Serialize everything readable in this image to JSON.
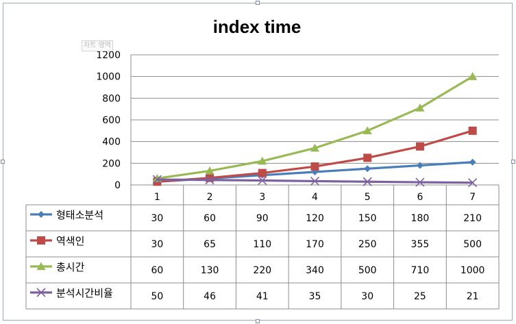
{
  "chart_data": {
    "type": "line",
    "title": "index time",
    "categories": [
      "1",
      "2",
      "3",
      "4",
      "5",
      "6",
      "7"
    ],
    "ylim": [
      0,
      1200
    ],
    "yticks": [
      "0",
      "200",
      "400",
      "600",
      "800",
      "1000",
      "1200"
    ],
    "grid": "horizontal",
    "legend": "data-table-left",
    "series": [
      {
        "name": "형태소분석",
        "values": [
          30,
          60,
          90,
          120,
          150,
          180,
          210
        ],
        "color": "#4a7ebb",
        "marker": "diamond"
      },
      {
        "name": "역색인",
        "values": [
          30,
          65,
          110,
          170,
          250,
          355,
          500
        ],
        "color": "#be4b48",
        "marker": "square"
      },
      {
        "name": "총시간",
        "values": [
          60,
          130,
          220,
          340,
          500,
          710,
          1000
        ],
        "color": "#98b954",
        "marker": "triangle"
      },
      {
        "name": "분석시간비율",
        "values": [
          50,
          46,
          41,
          35,
          30,
          25,
          21
        ],
        "color": "#7d60a0",
        "marker": "x"
      }
    ]
  },
  "tooltip": "차트 영역"
}
